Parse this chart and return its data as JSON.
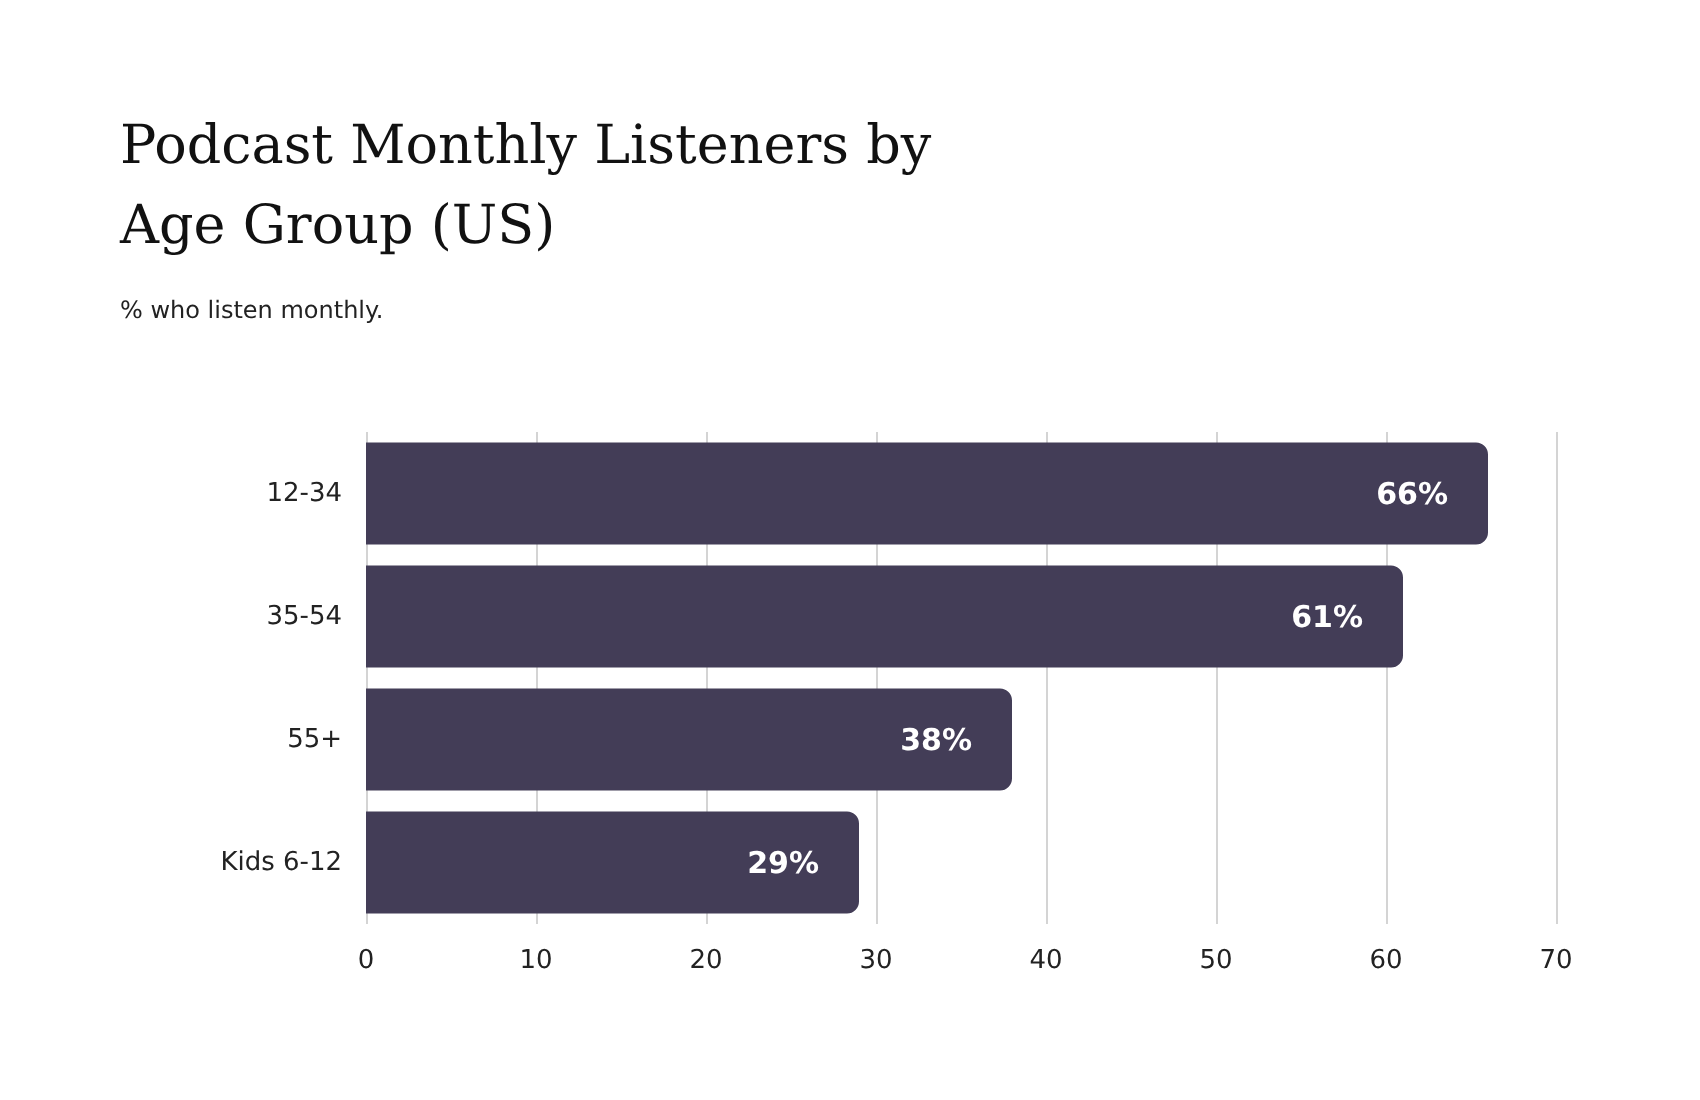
{
  "chart_data": {
    "type": "bar",
    "orientation": "horizontal",
    "title": "Podcast Monthly Listeners by Age Group (US)",
    "subtitle": "% who listen monthly.",
    "categories": [
      "12-34",
      "35-54",
      "55+",
      "Kids 6-12"
    ],
    "values": [
      66,
      61,
      38,
      29
    ],
    "value_labels": [
      "66%",
      "61%",
      "38%",
      "29%"
    ],
    "color": "#433d57",
    "xlim": [
      0,
      70
    ],
    "xticks": [
      0,
      10,
      20,
      30,
      40,
      50,
      60,
      70
    ],
    "grid": "x"
  }
}
